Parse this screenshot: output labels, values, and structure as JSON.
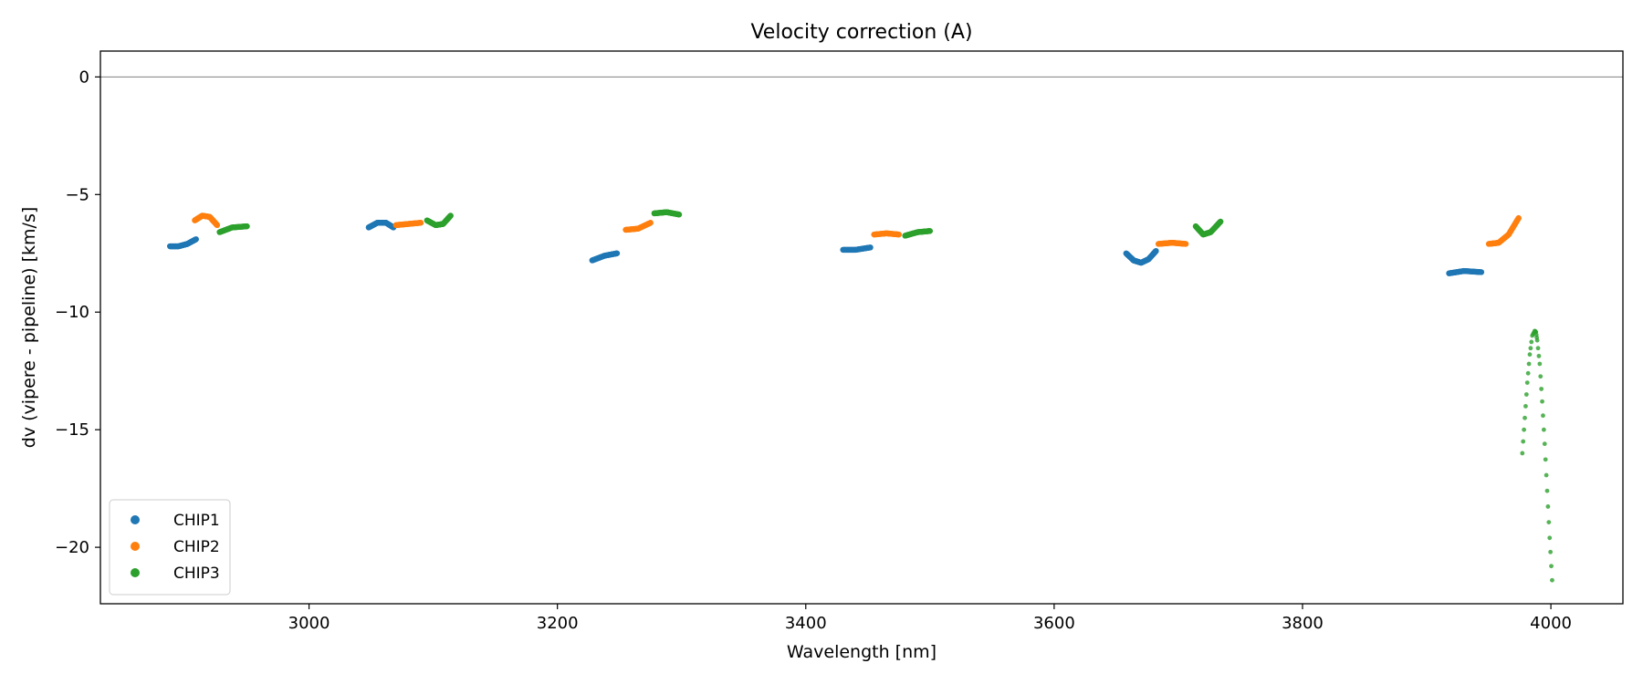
{
  "chart_data": {
    "type": "scatter",
    "title": "Velocity correction (A)",
    "xlabel": "Wavelength [nm]",
    "ylabel": "dv (vipere - pipeline) [km/s]",
    "xlim": [
      2832,
      4058
    ],
    "ylim": [
      -22.4,
      1.1
    ],
    "xticks": [
      3000,
      3200,
      3400,
      3600,
      3800,
      4000
    ],
    "yticks": [
      0,
      -5,
      -10,
      -15,
      -20
    ],
    "grid": false,
    "hline": 0,
    "legend_position": "lower-left",
    "series": [
      {
        "name": "CHIP1",
        "color": "#1f77b4",
        "segments": [
          {
            "x": [
              2888,
              2895,
              2902,
              2909
            ],
            "y": [
              -7.2,
              -7.2,
              -7.1,
              -6.9
            ]
          },
          {
            "x": [
              3048,
              3055,
              3062,
              3068
            ],
            "y": [
              -6.4,
              -6.2,
              -6.2,
              -6.4
            ]
          },
          {
            "x": [
              3228,
              3238,
              3248
            ],
            "y": [
              -7.8,
              -7.6,
              -7.5
            ]
          },
          {
            "x": [
              3430,
              3440,
              3452
            ],
            "y": [
              -7.35,
              -7.35,
              -7.25
            ]
          },
          {
            "x": [
              3658,
              3664,
              3670,
              3676,
              3682
            ],
            "y": [
              -7.5,
              -7.8,
              -7.9,
              -7.75,
              -7.4
            ]
          },
          {
            "x": [
              3918,
              3930,
              3944
            ],
            "y": [
              -8.35,
              -8.25,
              -8.3
            ]
          }
        ]
      },
      {
        "name": "CHIP2",
        "color": "#ff7f0e",
        "segments": [
          {
            "x": [
              2908,
              2914,
              2920,
              2926
            ],
            "y": [
              -6.1,
              -5.9,
              -5.95,
              -6.3
            ]
          },
          {
            "x": [
              3070,
              3080,
              3090
            ],
            "y": [
              -6.3,
              -6.25,
              -6.2
            ]
          },
          {
            "x": [
              3255,
              3265,
              3275
            ],
            "y": [
              -6.5,
              -6.45,
              -6.2
            ]
          },
          {
            "x": [
              3455,
              3465,
              3475
            ],
            "y": [
              -6.7,
              -6.65,
              -6.7
            ]
          },
          {
            "x": [
              3684,
              3695,
              3706
            ],
            "y": [
              -7.1,
              -7.05,
              -7.1
            ]
          },
          {
            "x": [
              3950,
              3958,
              3966,
              3974
            ],
            "y": [
              -7.1,
              -7.05,
              -6.7,
              -6.0
            ]
          }
        ]
      },
      {
        "name": "CHIP3",
        "color": "#2ca02c",
        "segments": [
          {
            "x": [
              2928,
              2938,
              2950
            ],
            "y": [
              -6.6,
              -6.4,
              -6.35
            ]
          },
          {
            "x": [
              3095,
              3102,
              3108,
              3114
            ],
            "y": [
              -6.1,
              -6.3,
              -6.25,
              -5.9
            ]
          },
          {
            "x": [
              3278,
              3288,
              3298
            ],
            "y": [
              -5.8,
              -5.75,
              -5.85
            ]
          },
          {
            "x": [
              3480,
              3490,
              3500
            ],
            "y": [
              -6.75,
              -6.6,
              -6.55
            ]
          },
          {
            "x": [
              3714,
              3720,
              3726,
              3734
            ],
            "y": [
              -6.35,
              -6.7,
              -6.6,
              -6.15
            ]
          }
        ],
        "scatter": {
          "x": [
            3977,
            3979,
            3981,
            3983,
            3985,
            3987,
            3988,
            3989,
            3991,
            3993,
            3995,
            3997,
            3999,
            4001
          ],
          "y": [
            -16.0,
            -14.5,
            -13.0,
            -11.8,
            -11.0,
            -10.8,
            -10.85,
            -11.2,
            -12.2,
            -13.8,
            -15.6,
            -17.6,
            -19.6,
            -21.4
          ]
        }
      }
    ]
  }
}
